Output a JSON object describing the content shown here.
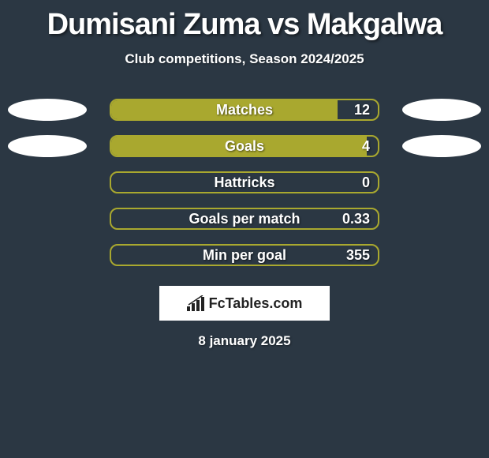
{
  "title": "Dumisani Zuma vs Makgalwa",
  "subtitle": "Club competitions, Season 2024/2025",
  "date": "8 january 2025",
  "logo_text": "FcTables.com",
  "background_color": "#2b3743",
  "ellipse_color": "#ffffff",
  "stats": [
    {
      "label": "Matches",
      "value": "12",
      "fill_pct": 85,
      "fill_color": "#a9a82f",
      "border_color": "#a9a82f",
      "show_ellipses": true
    },
    {
      "label": "Goals",
      "value": "4",
      "fill_pct": 96,
      "fill_color": "#a9a82f",
      "border_color": "#a9a82f",
      "show_ellipses": true
    },
    {
      "label": "Hattricks",
      "value": "0",
      "fill_pct": 0,
      "fill_color": "#a9a82f",
      "border_color": "#a9a82f",
      "show_ellipses": false
    },
    {
      "label": "Goals per match",
      "value": "0.33",
      "fill_pct": 0,
      "fill_color": "#a9a82f",
      "border_color": "#a9a82f",
      "show_ellipses": false
    },
    {
      "label": "Min per goal",
      "value": "355",
      "fill_pct": 0,
      "fill_color": "#a9a82f",
      "border_color": "#a9a82f",
      "show_ellipses": false
    }
  ]
}
